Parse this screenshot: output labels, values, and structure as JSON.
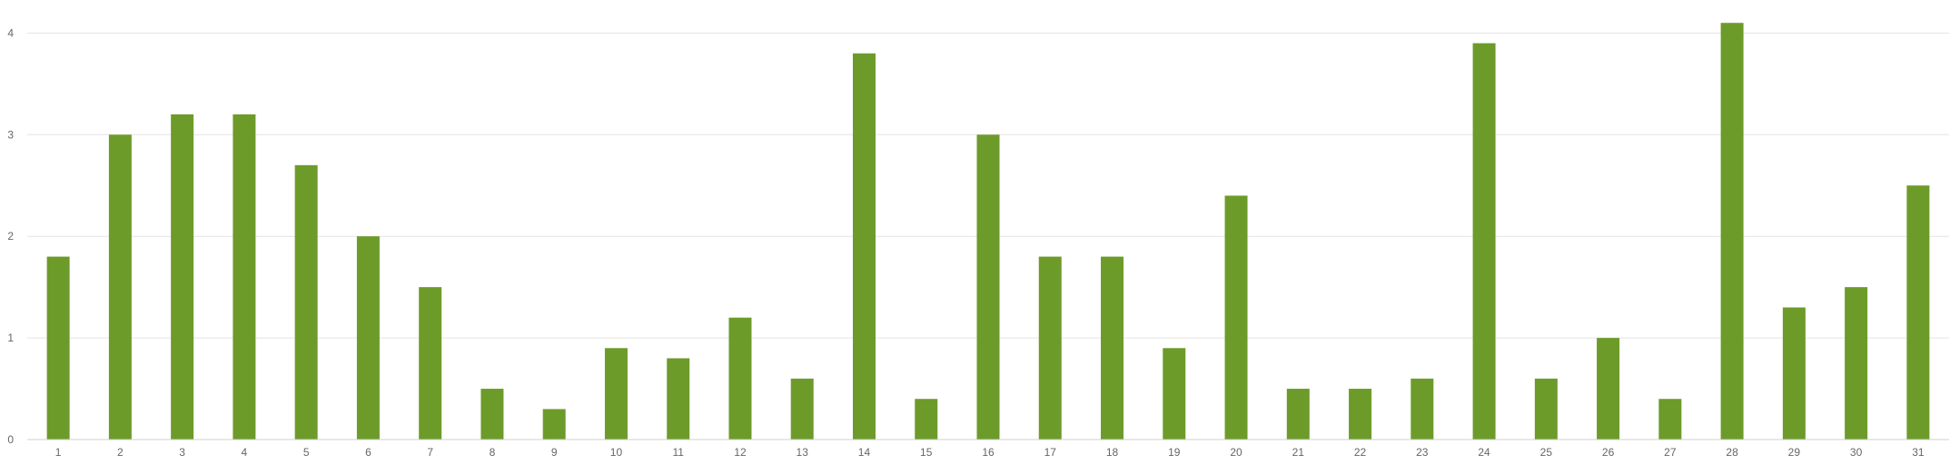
{
  "chart_data": {
    "type": "bar",
    "title": "",
    "xlabel": "",
    "ylabel": "",
    "categories": [
      "1",
      "2",
      "3",
      "4",
      "5",
      "6",
      "7",
      "8",
      "9",
      "10",
      "11",
      "12",
      "13",
      "14",
      "15",
      "16",
      "17",
      "18",
      "19",
      "20",
      "21",
      "22",
      "23",
      "24",
      "25",
      "26",
      "27",
      "28",
      "29",
      "30",
      "31"
    ],
    "values": [
      1.8,
      3.0,
      3.2,
      3.2,
      2.7,
      2.0,
      1.5,
      0.5,
      0.3,
      0.9,
      0.8,
      1.2,
      0.6,
      3.8,
      0.4,
      3.0,
      1.8,
      1.8,
      0.9,
      2.4,
      0.5,
      0.5,
      0.6,
      3.9,
      0.6,
      1.0,
      0.4,
      4.1,
      1.3,
      1.5,
      2.5
    ],
    "ylim": [
      0,
      4.2
    ],
    "yticks": [
      0,
      1,
      2,
      3,
      4
    ],
    "ytick_labels": [
      "0",
      "1",
      "2",
      "3",
      "4"
    ],
    "grid": true,
    "legend": "none",
    "colors": {
      "bar": "#6d9b2a",
      "grid": "#e3e3e3",
      "axis": "#cfcfcf",
      "tick_text": "#666666"
    }
  }
}
